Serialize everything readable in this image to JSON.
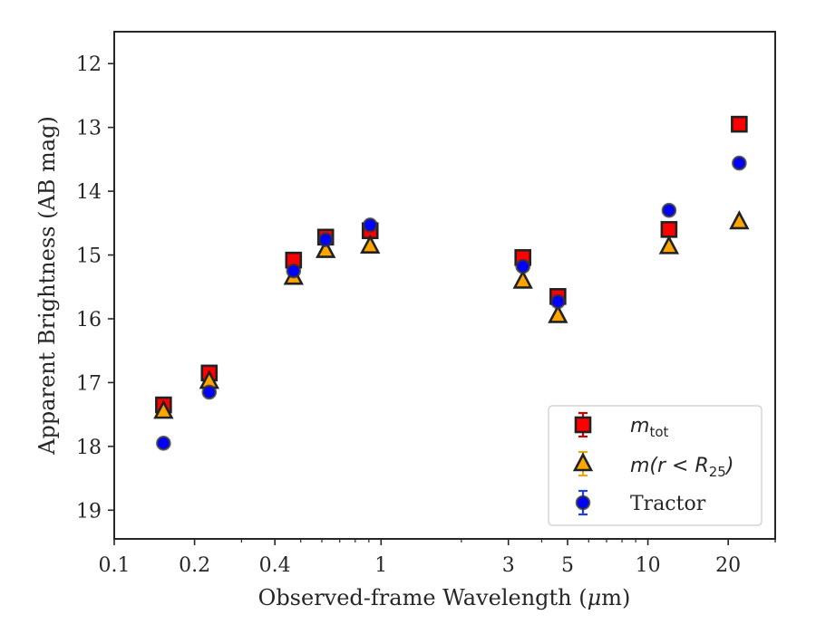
{
  "chart_data": {
    "type": "scatter",
    "title": "",
    "xlabel_prefix": "Observed-frame Wavelength (",
    "xlabel_mu": "μ",
    "xlabel_suffix": "m)",
    "ylabel": "Apparent Brightness (AB mag)",
    "x_scale": "log",
    "xlim": [
      0.1,
      30
    ],
    "ylim": [
      19.45,
      11.5
    ],
    "y_inverted": true,
    "grid": false,
    "legend_position": "lower-right",
    "x_ticks": [
      {
        "value": 0.1,
        "label": "0.1"
      },
      {
        "value": 0.2,
        "label": "0.2"
      },
      {
        "value": 0.4,
        "label": "0.4"
      },
      {
        "value": 1,
        "label": "1"
      },
      {
        "value": 3,
        "label": "3"
      },
      {
        "value": 5,
        "label": "5"
      },
      {
        "value": 10,
        "label": "10"
      },
      {
        "value": 20,
        "label": "20"
      }
    ],
    "y_ticks": [
      {
        "value": 12,
        "label": "12"
      },
      {
        "value": 13,
        "label": "13"
      },
      {
        "value": 14,
        "label": "14"
      },
      {
        "value": 15,
        "label": "15"
      },
      {
        "value": 16,
        "label": "16"
      },
      {
        "value": 17,
        "label": "17"
      },
      {
        "value": 18,
        "label": "18"
      },
      {
        "value": 19,
        "label": "19"
      }
    ],
    "series": [
      {
        "key": "mtot",
        "legend_main": "m",
        "legend_sub": "tot",
        "marker": "square",
        "color": "#ff0000",
        "edge_color": "#222222",
        "error_color": "#cc0000",
        "x": [
          0.153,
          0.227,
          0.47,
          0.62,
          0.91,
          3.4,
          4.6,
          12.0,
          22.0
        ],
        "y": [
          17.35,
          16.85,
          15.08,
          14.72,
          14.62,
          15.04,
          15.65,
          14.6,
          12.95
        ]
      },
      {
        "key": "mR25",
        "legend_main": "m(r < R",
        "legend_sub": "25",
        "legend_close": ")",
        "marker": "triangle",
        "color": "#ffa500",
        "edge_color": "#222222",
        "error_color": "#e6a817",
        "x": [
          0.153,
          0.227,
          0.47,
          0.62,
          0.91,
          3.4,
          4.6,
          12.0,
          22.0
        ],
        "y": [
          17.45,
          16.98,
          15.35,
          14.93,
          14.86,
          15.41,
          15.95,
          14.87,
          14.48
        ]
      },
      {
        "key": "tractor",
        "legend_main": "Tractor",
        "marker": "circle",
        "color": "#0000ff",
        "edge_color": "#333333",
        "error_color": "#1f3fdf",
        "x": [
          0.153,
          0.227,
          0.47,
          0.62,
          0.91,
          3.4,
          4.6,
          12.0,
          22.0
        ],
        "y": [
          17.95,
          17.15,
          15.25,
          14.76,
          14.53,
          15.18,
          15.73,
          14.3,
          13.56
        ]
      }
    ]
  }
}
